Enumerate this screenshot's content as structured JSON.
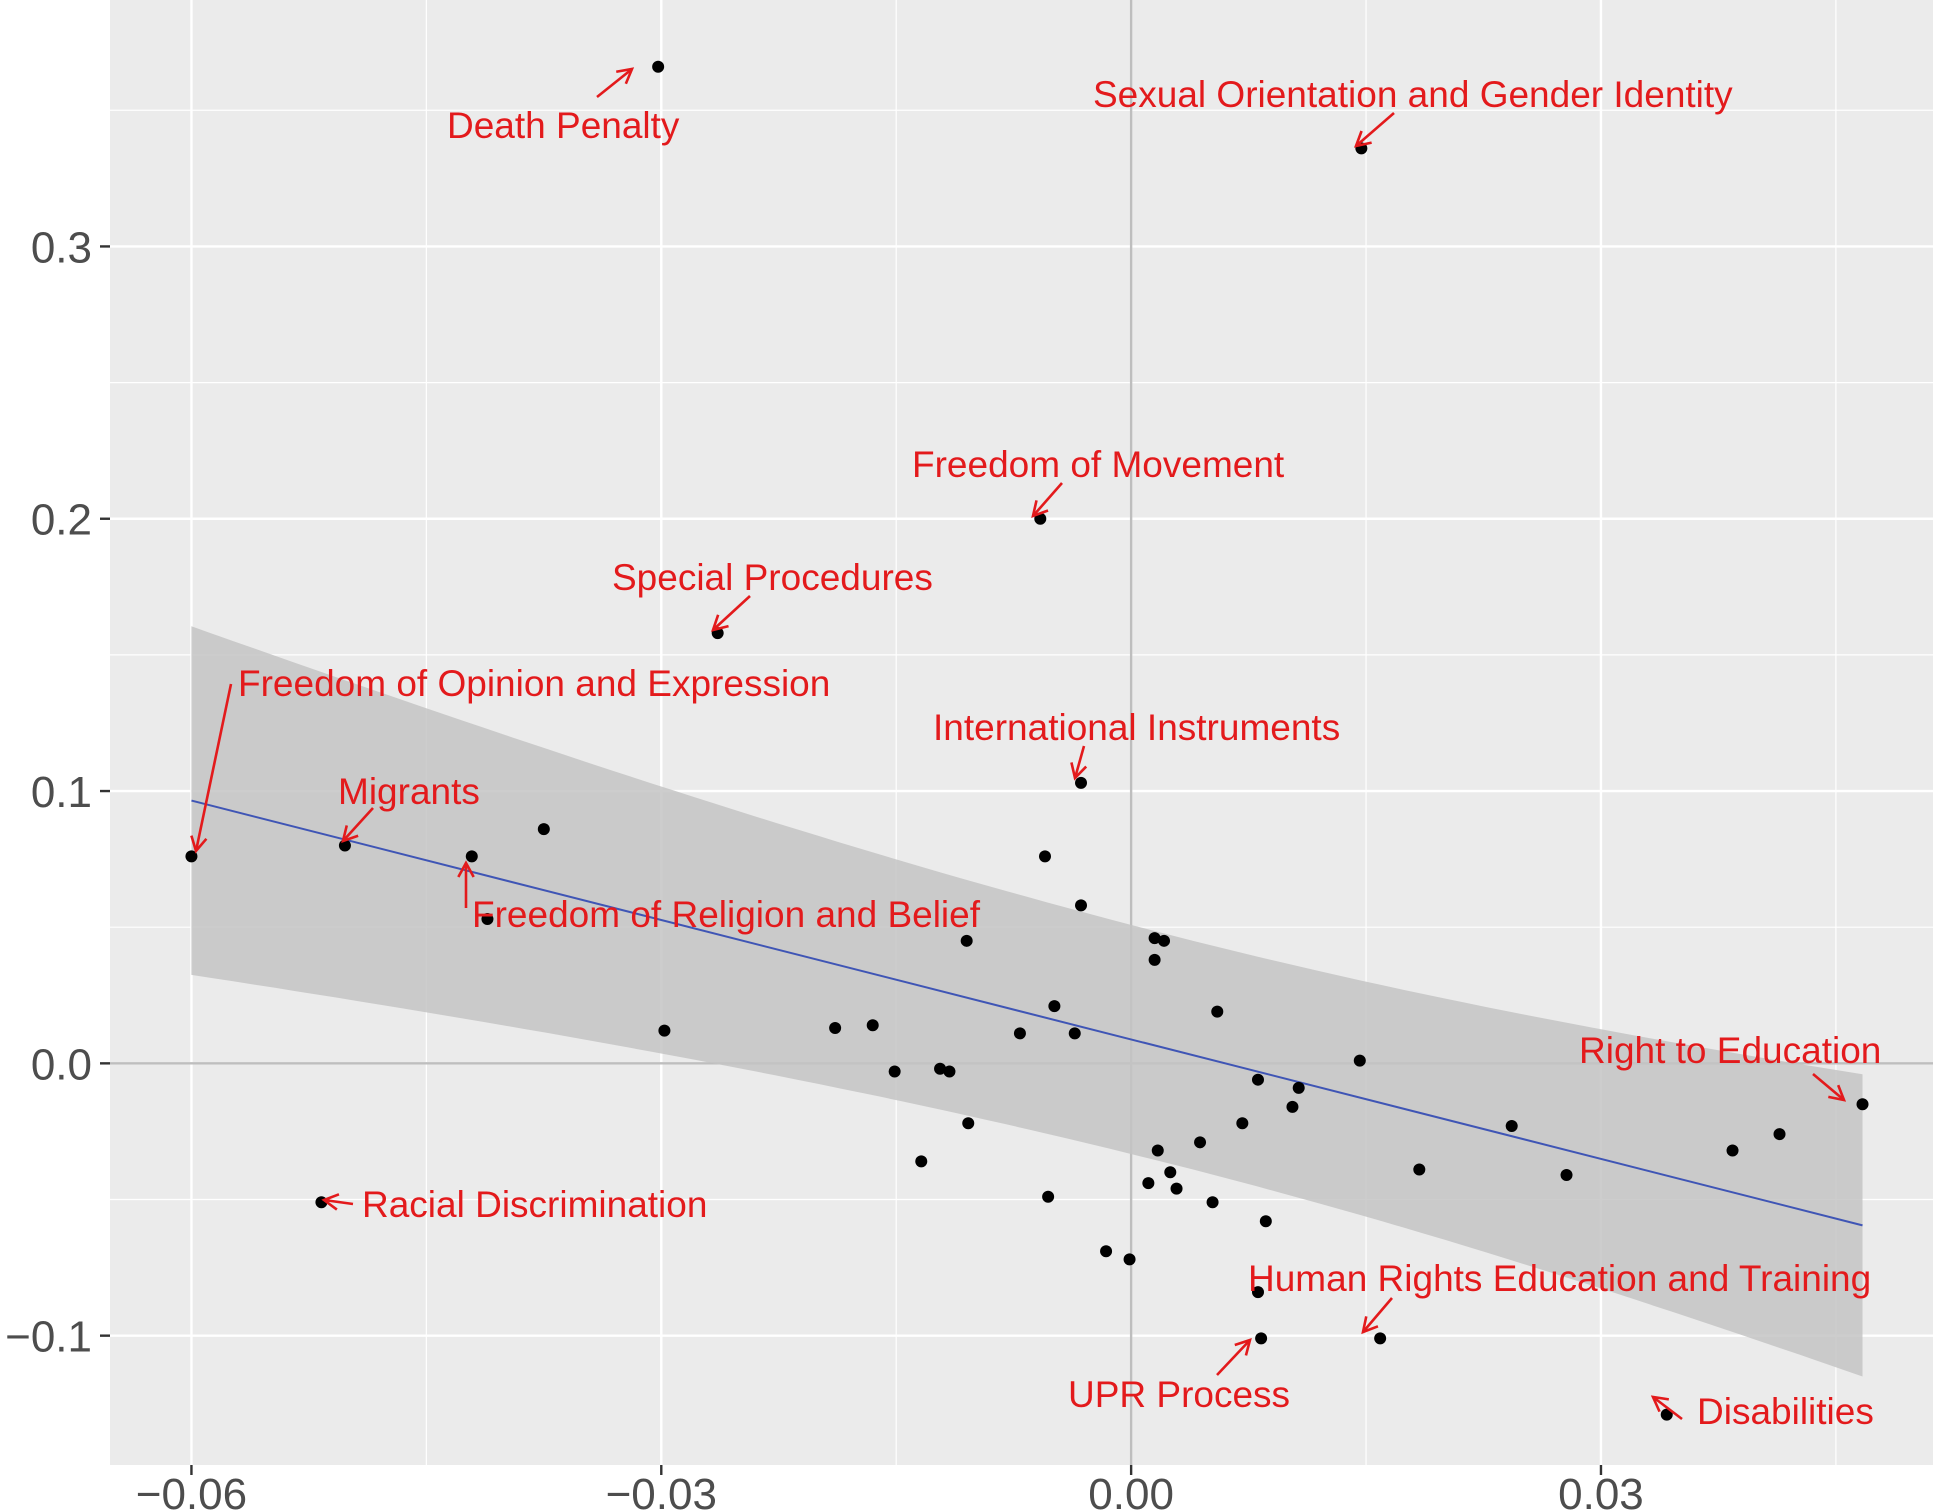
{
  "chart_data": {
    "type": "scatter",
    "title": "",
    "xlabel": "",
    "ylabel": "",
    "xlim": [
      -0.0652,
      0.0512
    ],
    "ylim": [
      -0.1475,
      0.3905
    ],
    "x_ticks": [
      -0.06,
      -0.03,
      0.0,
      0.03
    ],
    "x_tick_labels": [
      "−0.06",
      "−0.03",
      "0.00",
      "0.03"
    ],
    "y_ticks": [
      -0.1,
      0.0,
      0.1,
      0.2,
      0.3
    ],
    "y_tick_labels": [
      "−0.1",
      "0.0",
      "0.1",
      "0.2",
      "0.3"
    ],
    "grid": true,
    "colors": {
      "panel": "#ebebeb",
      "grid": "#ffffff",
      "zero_lines": "#bebebe",
      "points": "#000000",
      "regression_line": "#3f55b5",
      "confidence_band": "#c4c4c4",
      "annotations": "#e31a1c",
      "tick_labels": "#4d4d4d"
    },
    "regression": {
      "x": [
        -0.06,
        0.0467
      ],
      "y": [
        0.0965,
        -0.0595
      ],
      "ci_lower": [
        0.0325,
        -0.1155
      ],
      "ci_upper": [
        0.1605,
        -0.004
      ]
    },
    "points": [
      {
        "x": -0.0302,
        "y": 0.366,
        "label": "Death Penalty"
      },
      {
        "x": 0.0147,
        "y": 0.336,
        "label": "Sexual Orientation and Gender Identity"
      },
      {
        "x": -0.0058,
        "y": 0.2,
        "label": "Freedom of Movement"
      },
      {
        "x": -0.0264,
        "y": 0.158,
        "label": "Special Procedures"
      },
      {
        "x": -0.0032,
        "y": 0.103,
        "label": "International Instruments"
      },
      {
        "x": -0.06,
        "y": 0.076,
        "label": "Freedom of Opinion and Expression"
      },
      {
        "x": -0.0502,
        "y": 0.08,
        "label": "Migrants"
      },
      {
        "x": -0.0421,
        "y": 0.076,
        "label": "Freedom of Religion and Belief"
      },
      {
        "x": 0.0467,
        "y": -0.015,
        "label": "Right to Education"
      },
      {
        "x": -0.0517,
        "y": -0.051,
        "label": "Racial Discrimination"
      },
      {
        "x": 0.0159,
        "y": -0.101,
        "label": "Human Rights Education and Training"
      },
      {
        "x": 0.0083,
        "y": -0.101,
        "label": "UPR Process"
      },
      {
        "x": 0.0342,
        "y": -0.129,
        "label": "Disabilities"
      },
      {
        "x": -0.0375,
        "y": 0.086,
        "label": ""
      },
      {
        "x": -0.0411,
        "y": 0.053,
        "label": ""
      },
      {
        "x": -0.0055,
        "y": 0.076,
        "label": ""
      },
      {
        "x": -0.0032,
        "y": 0.058,
        "label": ""
      },
      {
        "x": -0.0105,
        "y": 0.045,
        "label": ""
      },
      {
        "x": 0.0015,
        "y": 0.046,
        "label": ""
      },
      {
        "x": 0.0021,
        "y": 0.045,
        "label": ""
      },
      {
        "x": 0.0015,
        "y": 0.038,
        "label": ""
      },
      {
        "x": -0.0298,
        "y": 0.012,
        "label": ""
      },
      {
        "x": -0.0189,
        "y": 0.013,
        "label": ""
      },
      {
        "x": -0.0165,
        "y": 0.014,
        "label": ""
      },
      {
        "x": -0.0049,
        "y": 0.021,
        "label": ""
      },
      {
        "x": -0.0071,
        "y": 0.011,
        "label": ""
      },
      {
        "x": -0.0036,
        "y": 0.011,
        "label": ""
      },
      {
        "x": 0.0055,
        "y": 0.019,
        "label": ""
      },
      {
        "x": 0.0146,
        "y": 0.001,
        "label": ""
      },
      {
        "x": -0.0151,
        "y": -0.003,
        "label": ""
      },
      {
        "x": -0.0122,
        "y": -0.002,
        "label": ""
      },
      {
        "x": -0.0116,
        "y": -0.003,
        "label": ""
      },
      {
        "x": 0.0081,
        "y": -0.006,
        "label": ""
      },
      {
        "x": 0.0107,
        "y": -0.009,
        "label": ""
      },
      {
        "x": 0.0103,
        "y": -0.016,
        "label": ""
      },
      {
        "x": -0.0104,
        "y": -0.022,
        "label": ""
      },
      {
        "x": 0.0071,
        "y": -0.022,
        "label": ""
      },
      {
        "x": 0.0243,
        "y": -0.023,
        "label": ""
      },
      {
        "x": 0.0044,
        "y": -0.029,
        "label": ""
      },
      {
        "x": 0.0017,
        "y": -0.032,
        "label": ""
      },
      {
        "x": -0.0134,
        "y": -0.036,
        "label": ""
      },
      {
        "x": 0.0025,
        "y": -0.04,
        "label": ""
      },
      {
        "x": 0.0184,
        "y": -0.039,
        "label": ""
      },
      {
        "x": 0.0278,
        "y": -0.041,
        "label": ""
      },
      {
        "x": 0.0384,
        "y": -0.032,
        "label": ""
      },
      {
        "x": 0.0414,
        "y": -0.026,
        "label": ""
      },
      {
        "x": 0.0011,
        "y": -0.044,
        "label": ""
      },
      {
        "x": 0.0029,
        "y": -0.046,
        "label": ""
      },
      {
        "x": -0.0053,
        "y": -0.049,
        "label": ""
      },
      {
        "x": 0.0052,
        "y": -0.051,
        "label": ""
      },
      {
        "x": 0.0086,
        "y": -0.058,
        "label": ""
      },
      {
        "x": -0.0016,
        "y": -0.069,
        "label": ""
      },
      {
        "x": -0.0001,
        "y": -0.072,
        "label": ""
      },
      {
        "x": 0.0081,
        "y": -0.084,
        "label": ""
      }
    ]
  }
}
